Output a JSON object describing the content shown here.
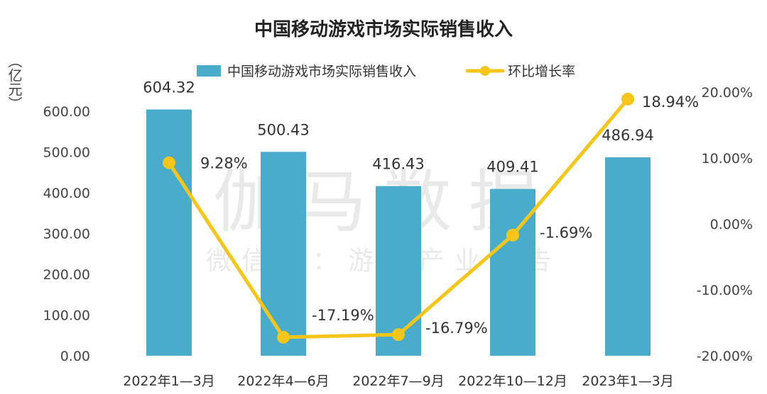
{
  "chart_data": {
    "type": "bar+line",
    "title": "中国移动游戏市场实际销售收入",
    "categories": [
      "2022年1—3月",
      "2022年4—6月",
      "2022年7—9月",
      "2022年10—12月",
      "2023年1—3月"
    ],
    "series": [
      {
        "name": "中国移动游戏市场实际销售收入",
        "type": "bar",
        "axis": "left",
        "color": "#4aaccb",
        "values": [
          604.32,
          500.43,
          416.43,
          409.41,
          486.94
        ],
        "labels": [
          "604.32",
          "500.43",
          "416.43",
          "409.41",
          "486.94"
        ]
      },
      {
        "name": "环比增长率",
        "type": "line",
        "axis": "right",
        "color": "#f5c518",
        "values": [
          9.28,
          -17.19,
          -16.79,
          -1.69,
          18.94
        ],
        "labels": [
          "9.28%",
          "-17.19%",
          "-16.79%",
          "-1.69%",
          "18.94%"
        ]
      }
    ],
    "ylabel_left": "（亿元）",
    "ylim_left": [
      0,
      600
    ],
    "yticks_left": [
      "0.00",
      "100.00",
      "200.00",
      "300.00",
      "400.00",
      "500.00",
      "600.00"
    ],
    "ylim_right": [
      -20,
      20
    ],
    "yticks_right": [
      "-20.00%",
      "-10.00%",
      "0.00%",
      "10.00%",
      "20.00%"
    ],
    "legend_position": "top-center",
    "grid": false
  },
  "watermark": {
    "line1": "伽马数据",
    "line2": "微信号：游戏产业报告"
  }
}
